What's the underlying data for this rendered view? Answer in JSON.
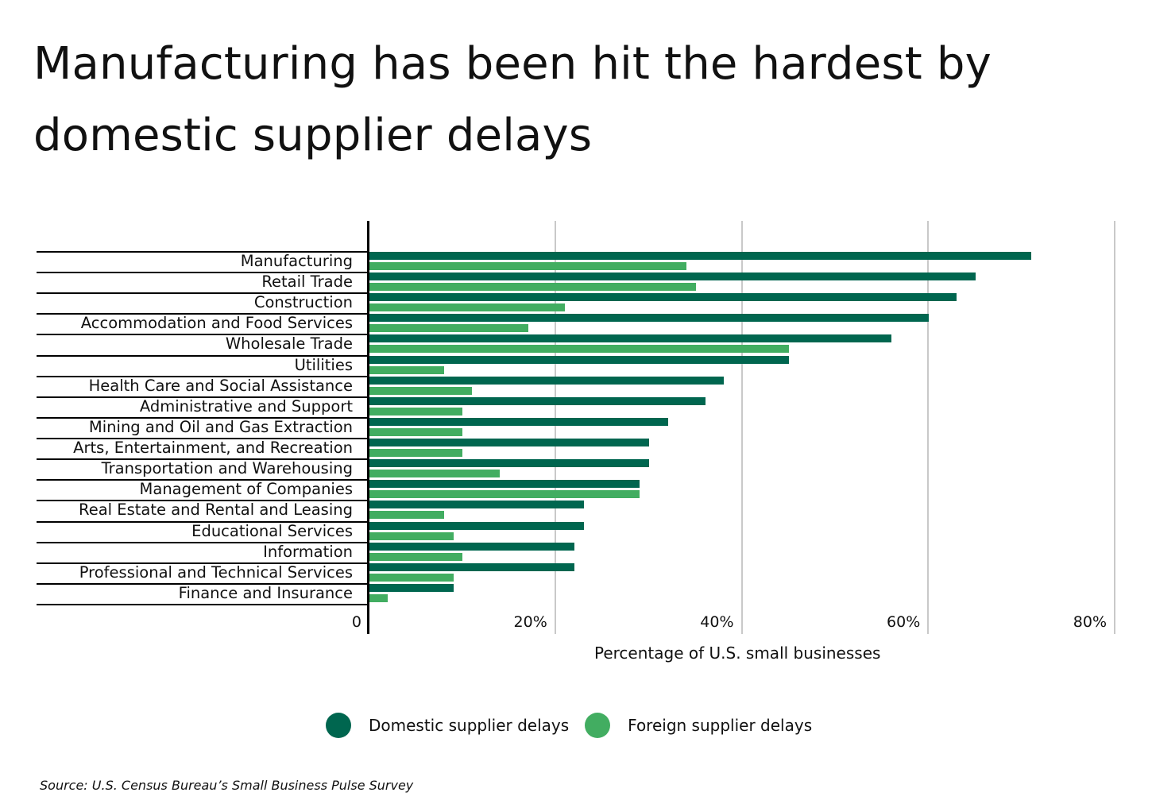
{
  "title": "Manufacturing has been hit the hardest by domestic supplier delays",
  "colors": {
    "domestic": "#00664f",
    "foreign": "#42ad61",
    "grid": "#c9c9c9",
    "axis": "#000000"
  },
  "chart_data": {
    "type": "bar",
    "orientation": "horizontal",
    "title": "Manufacturing has been hit the hardest by domestic supplier delays",
    "xlabel": "Percentage of U.S. small businesses",
    "ylabel": "",
    "xlim": [
      0,
      80
    ],
    "xticks": [
      "0",
      "20%",
      "40%",
      "60%",
      "80%"
    ],
    "grid": true,
    "legend_position": "bottom",
    "categories": [
      "Manufacturing",
      "Retail Trade",
      "Construction",
      "Accommodation and Food Services",
      "Wholesale Trade",
      "Utilities",
      "Health Care and Social Assistance",
      "Administrative and Support",
      "Mining and Oil and Gas Extraction",
      "Arts, Entertainment, and Recreation",
      "Transportation and Warehousing",
      "Management of Companies",
      "Real Estate and Rental and Leasing",
      "Educational Services",
      "Information",
      "Professional and Technical Services",
      "Finance and Insurance"
    ],
    "series": [
      {
        "name": "Domestic supplier delays",
        "color": "#00664f",
        "values": [
          71,
          65,
          63,
          60,
          56,
          45,
          38,
          36,
          32,
          30,
          30,
          29,
          23,
          23,
          22,
          22,
          9
        ]
      },
      {
        "name": "Foreign supplier delays",
        "color": "#42ad61",
        "values": [
          34,
          35,
          21,
          17,
          45,
          8,
          11,
          10,
          10,
          10,
          14,
          29,
          8,
          9,
          10,
          9,
          2
        ]
      }
    ],
    "source": "Source:  U.S. Census Bureau’s Small Business Pulse Survey"
  },
  "axis": {
    "ticks": [
      {
        "label": "0",
        "value": 0
      },
      {
        "label": "20%",
        "value": 20
      },
      {
        "label": "40%",
        "value": 40
      },
      {
        "label": "60%",
        "value": 60
      },
      {
        "label": "80%",
        "value": 80
      }
    ],
    "xlabel": "Percentage of U.S. small businesses"
  },
  "legend": {
    "items": [
      {
        "label": "Domestic supplier delays",
        "color": "#00664f"
      },
      {
        "label": "Foreign supplier delays",
        "color": "#42ad61"
      }
    ]
  },
  "source": "Source:  U.S. Census Bureau’s Small Business Pulse Survey"
}
